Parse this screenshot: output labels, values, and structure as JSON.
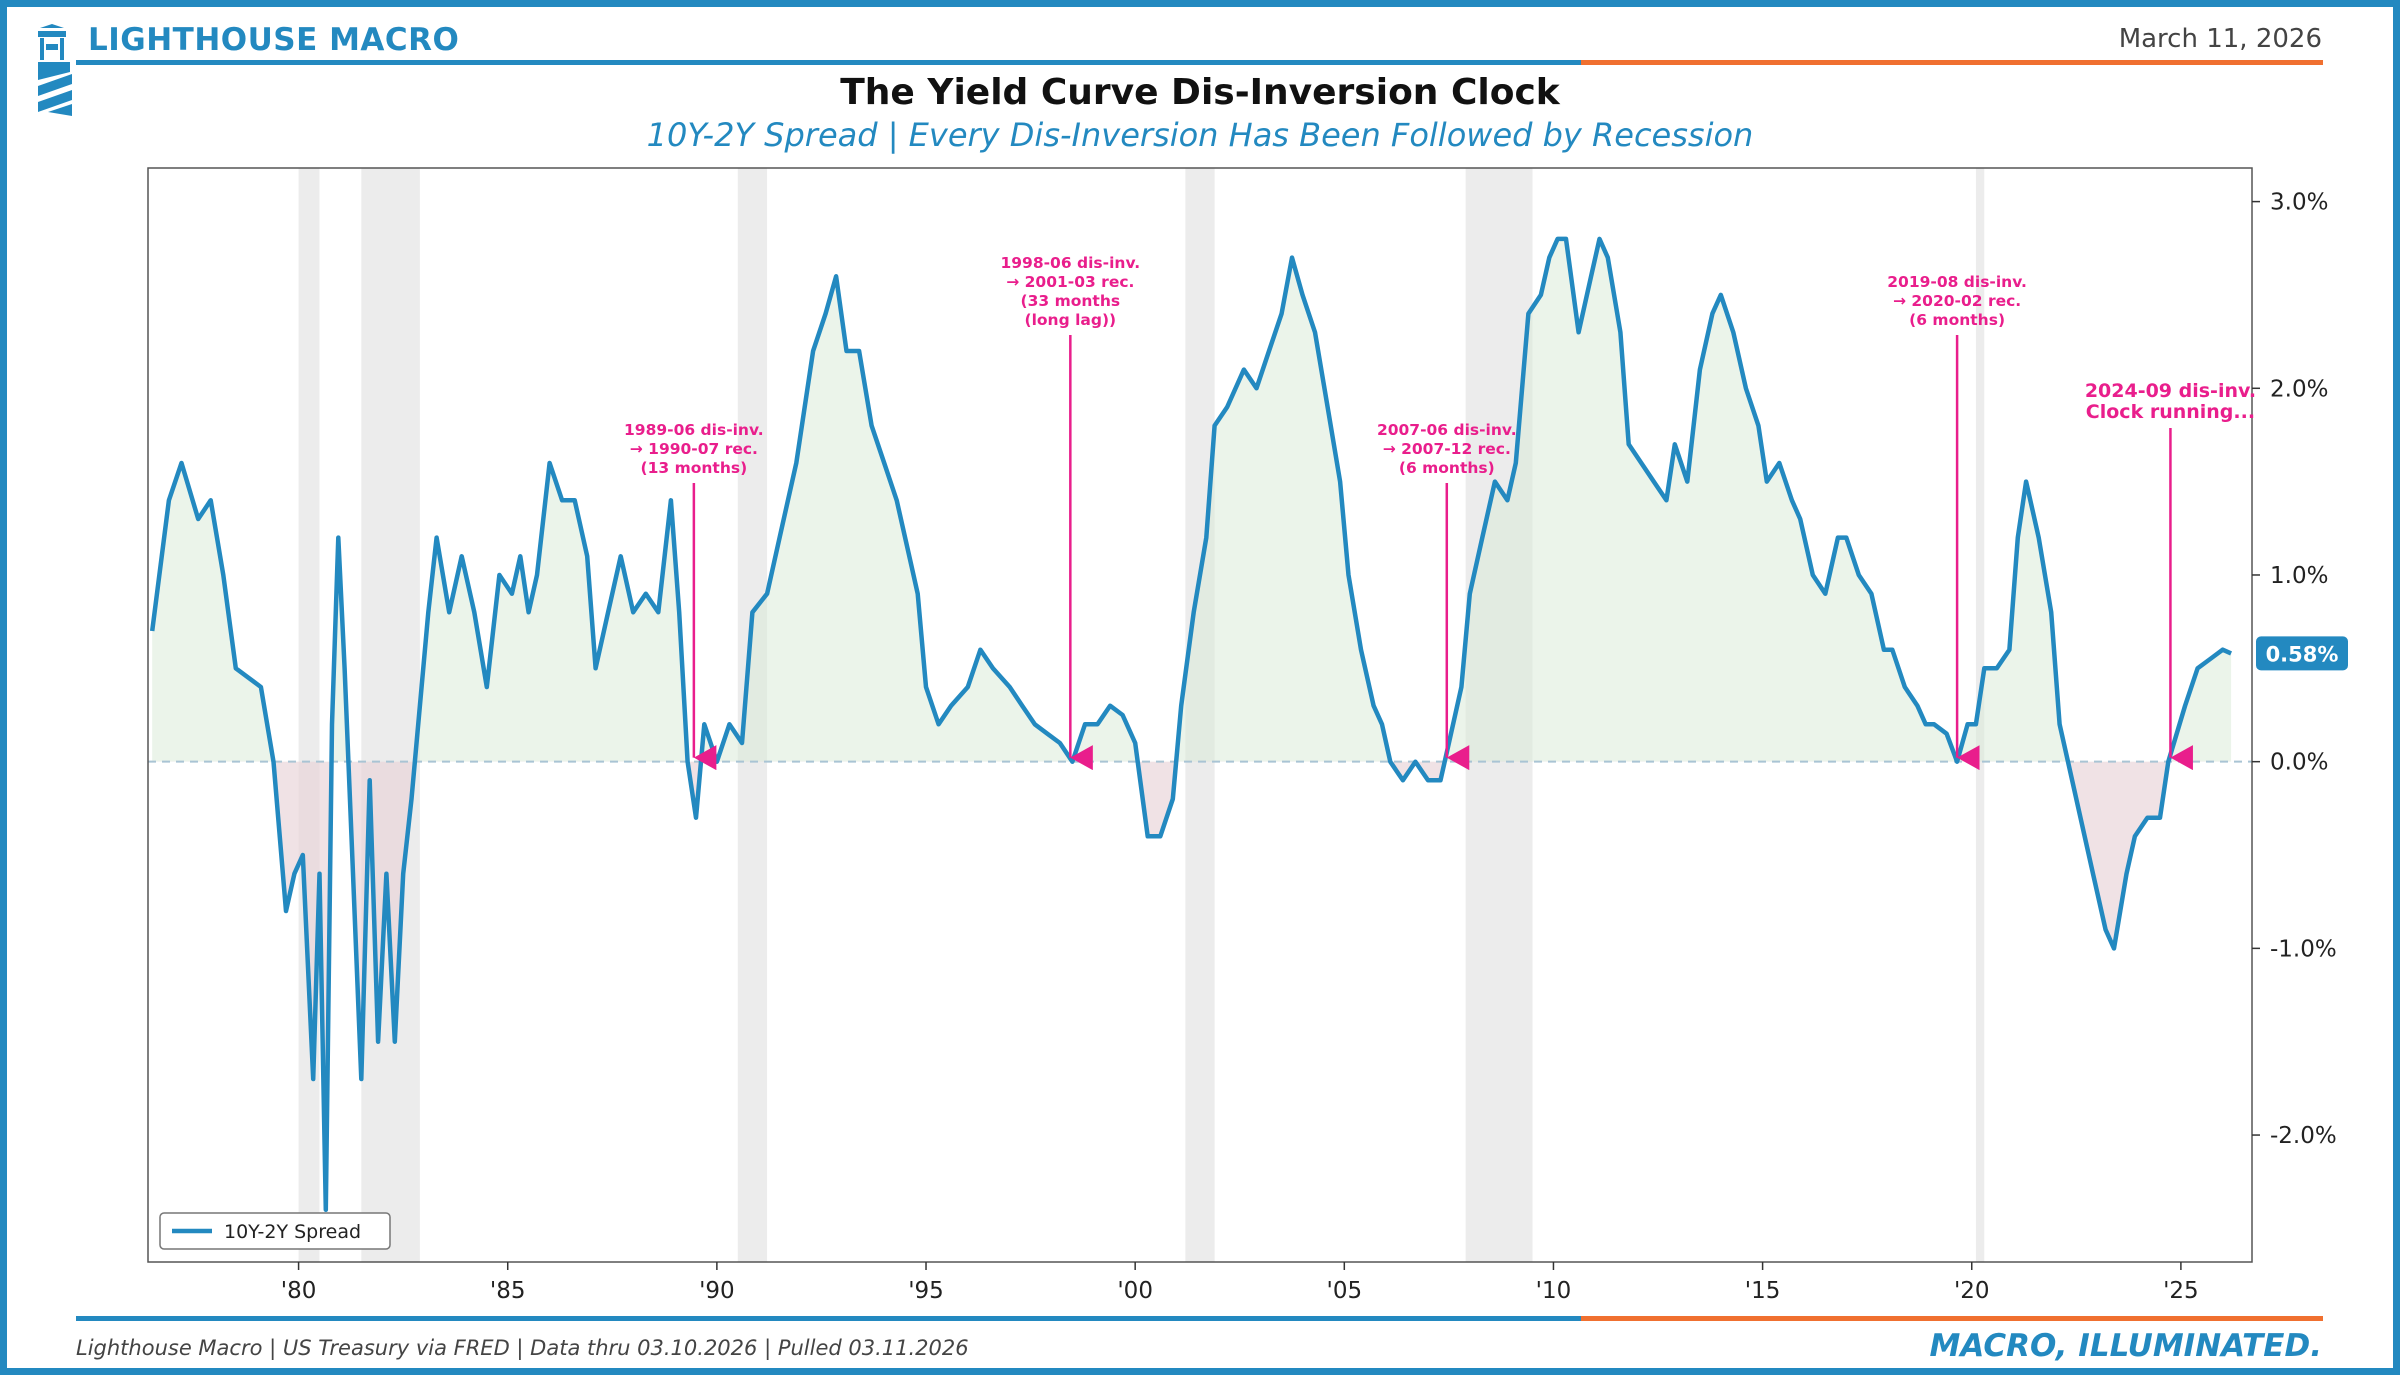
{
  "header": {
    "brand": "LIGHTHOUSE MACRO",
    "date": "March 11, 2026",
    "accent_blue": "#2389c0",
    "accent_orange": "#f07030"
  },
  "footer": {
    "source": "Lighthouse Macro | US Treasury via FRED | Data thru 03.10.2026 | Pulled 03.11.2026",
    "tagline": "MACRO, ILLUMINATED."
  },
  "chart_data": {
    "type": "line",
    "title": "The Yield Curve Dis-Inversion Clock",
    "subtitle": "10Y-2Y Spread | Every Dis-Inversion Has Been Followed by Recession",
    "series": [
      {
        "name": "10Y-2Y Spread",
        "color": "#2389c0",
        "points": [
          [
            1976.5,
            0.7
          ],
          [
            1976.9,
            1.4
          ],
          [
            1977.2,
            1.6
          ],
          [
            1977.6,
            1.3
          ],
          [
            1977.9,
            1.4
          ],
          [
            1978.2,
            1.0
          ],
          [
            1978.5,
            0.5
          ],
          [
            1978.8,
            0.45
          ],
          [
            1979.1,
            0.4
          ],
          [
            1979.4,
            0.0
          ],
          [
            1979.7,
            -0.8
          ],
          [
            1979.9,
            -0.6
          ],
          [
            1980.1,
            -0.5
          ],
          [
            1980.35,
            -1.7
          ],
          [
            1980.5,
            -0.6
          ],
          [
            1980.65,
            -2.4
          ],
          [
            1980.8,
            0.2
          ],
          [
            1980.95,
            1.2
          ],
          [
            1981.1,
            0.5
          ],
          [
            1981.3,
            -0.6
          ],
          [
            1981.5,
            -1.7
          ],
          [
            1981.7,
            -0.1
          ],
          [
            1981.9,
            -1.5
          ],
          [
            1982.1,
            -0.6
          ],
          [
            1982.3,
            -1.5
          ],
          [
            1982.5,
            -0.6
          ],
          [
            1982.7,
            -0.2
          ],
          [
            1982.9,
            0.3
          ],
          [
            1983.1,
            0.8
          ],
          [
            1983.3,
            1.2
          ],
          [
            1983.6,
            0.8
          ],
          [
            1983.9,
            1.1
          ],
          [
            1984.2,
            0.8
          ],
          [
            1984.5,
            0.4
          ],
          [
            1984.8,
            1.0
          ],
          [
            1985.1,
            0.9
          ],
          [
            1985.3,
            1.1
          ],
          [
            1985.5,
            0.8
          ],
          [
            1985.7,
            1.0
          ],
          [
            1986.0,
            1.6
          ],
          [
            1986.3,
            1.4
          ],
          [
            1986.6,
            1.4
          ],
          [
            1986.9,
            1.1
          ],
          [
            1987.1,
            0.5
          ],
          [
            1987.4,
            0.8
          ],
          [
            1987.7,
            1.1
          ],
          [
            1988.0,
            0.8
          ],
          [
            1988.3,
            0.9
          ],
          [
            1988.6,
            0.8
          ],
          [
            1988.9,
            1.4
          ],
          [
            1989.1,
            0.8
          ],
          [
            1989.3,
            0.0
          ],
          [
            1989.5,
            -0.3
          ],
          [
            1989.7,
            0.2
          ],
          [
            1990.0,
            0.0
          ],
          [
            1990.3,
            0.2
          ],
          [
            1990.6,
            0.1
          ],
          [
            1990.85,
            0.8
          ],
          [
            1991.2,
            0.9
          ],
          [
            1991.5,
            1.2
          ],
          [
            1991.9,
            1.6
          ],
          [
            1992.3,
            2.2
          ],
          [
            1992.6,
            2.4
          ],
          [
            1992.85,
            2.6
          ],
          [
            1993.1,
            2.2
          ],
          [
            1993.4,
            2.2
          ],
          [
            1993.7,
            1.8
          ],
          [
            1994.0,
            1.6
          ],
          [
            1994.3,
            1.4
          ],
          [
            1994.6,
            1.1
          ],
          [
            1994.8,
            0.9
          ],
          [
            1995.0,
            0.4
          ],
          [
            1995.3,
            0.2
          ],
          [
            1995.6,
            0.3
          ],
          [
            1996.0,
            0.4
          ],
          [
            1996.3,
            0.6
          ],
          [
            1996.6,
            0.5
          ],
          [
            1997.0,
            0.4
          ],
          [
            1997.3,
            0.3
          ],
          [
            1997.6,
            0.2
          ],
          [
            1997.9,
            0.15
          ],
          [
            1998.2,
            0.1
          ],
          [
            1998.5,
            0.0
          ],
          [
            1998.8,
            0.2
          ],
          [
            1999.1,
            0.2
          ],
          [
            1999.4,
            0.3
          ],
          [
            1999.7,
            0.25
          ],
          [
            2000.0,
            0.1
          ],
          [
            2000.3,
            -0.4
          ],
          [
            2000.6,
            -0.4
          ],
          [
            2000.9,
            -0.2
          ],
          [
            2001.1,
            0.3
          ],
          [
            2001.4,
            0.8
          ],
          [
            2001.7,
            1.2
          ],
          [
            2001.9,
            1.8
          ],
          [
            2002.2,
            1.9
          ],
          [
            2002.6,
            2.1
          ],
          [
            2002.9,
            2.0
          ],
          [
            2003.2,
            2.2
          ],
          [
            2003.5,
            2.4
          ],
          [
            2003.75,
            2.7
          ],
          [
            2004.0,
            2.5
          ],
          [
            2004.3,
            2.3
          ],
          [
            2004.6,
            1.9
          ],
          [
            2004.9,
            1.5
          ],
          [
            2005.1,
            1.0
          ],
          [
            2005.4,
            0.6
          ],
          [
            2005.7,
            0.3
          ],
          [
            2005.9,
            0.2
          ],
          [
            2006.1,
            0.0
          ],
          [
            2006.4,
            -0.1
          ],
          [
            2006.7,
            0.0
          ],
          [
            2007.0,
            -0.1
          ],
          [
            2007.3,
            -0.1
          ],
          [
            2007.5,
            0.1
          ],
          [
            2007.8,
            0.4
          ],
          [
            2008.0,
            0.9
          ],
          [
            2008.3,
            1.2
          ],
          [
            2008.6,
            1.5
          ],
          [
            2008.9,
            1.4
          ],
          [
            2009.1,
            1.6
          ],
          [
            2009.4,
            2.4
          ],
          [
            2009.7,
            2.5
          ],
          [
            2009.9,
            2.7
          ],
          [
            2010.1,
            2.8
          ],
          [
            2010.3,
            2.8
          ],
          [
            2010.6,
            2.3
          ],
          [
            2010.9,
            2.6
          ],
          [
            2011.1,
            2.8
          ],
          [
            2011.3,
            2.7
          ],
          [
            2011.6,
            2.3
          ],
          [
            2011.8,
            1.7
          ],
          [
            2012.1,
            1.6
          ],
          [
            2012.4,
            1.5
          ],
          [
            2012.7,
            1.4
          ],
          [
            2012.9,
            1.7
          ],
          [
            2013.2,
            1.5
          ],
          [
            2013.5,
            2.1
          ],
          [
            2013.8,
            2.4
          ],
          [
            2014.0,
            2.5
          ],
          [
            2014.3,
            2.3
          ],
          [
            2014.6,
            2.0
          ],
          [
            2014.9,
            1.8
          ],
          [
            2015.1,
            1.5
          ],
          [
            2015.4,
            1.6
          ],
          [
            2015.7,
            1.4
          ],
          [
            2015.9,
            1.3
          ],
          [
            2016.2,
            1.0
          ],
          [
            2016.5,
            0.9
          ],
          [
            2016.8,
            1.2
          ],
          [
            2017.0,
            1.2
          ],
          [
            2017.3,
            1.0
          ],
          [
            2017.6,
            0.9
          ],
          [
            2017.9,
            0.6
          ],
          [
            2018.1,
            0.6
          ],
          [
            2018.4,
            0.4
          ],
          [
            2018.7,
            0.3
          ],
          [
            2018.9,
            0.2
          ],
          [
            2019.1,
            0.2
          ],
          [
            2019.4,
            0.15
          ],
          [
            2019.65,
            0.0
          ],
          [
            2019.9,
            0.2
          ],
          [
            2020.1,
            0.2
          ],
          [
            2020.3,
            0.5
          ],
          [
            2020.6,
            0.5
          ],
          [
            2020.9,
            0.6
          ],
          [
            2021.1,
            1.2
          ],
          [
            2021.3,
            1.5
          ],
          [
            2021.6,
            1.2
          ],
          [
            2021.9,
            0.8
          ],
          [
            2022.1,
            0.2
          ],
          [
            2022.3,
            0.0
          ],
          [
            2022.6,
            -0.3
          ],
          [
            2022.9,
            -0.6
          ],
          [
            2023.2,
            -0.9
          ],
          [
            2023.4,
            -1.0
          ],
          [
            2023.7,
            -0.6
          ],
          [
            2023.9,
            -0.4
          ],
          [
            2024.2,
            -0.3
          ],
          [
            2024.5,
            -0.3
          ],
          [
            2024.7,
            0.0
          ],
          [
            2024.9,
            0.15
          ],
          [
            2025.1,
            0.3
          ],
          [
            2025.4,
            0.5
          ],
          [
            2025.7,
            0.55
          ],
          [
            2026.0,
            0.6
          ],
          [
            2026.2,
            0.58
          ]
        ]
      }
    ],
    "recessions": [
      [
        1980.0,
        1980.5
      ],
      [
        1981.5,
        1982.9
      ],
      [
        1990.5,
        1991.2
      ],
      [
        2001.2,
        2001.9
      ],
      [
        2007.9,
        2009.5
      ],
      [
        2020.1,
        2020.3
      ]
    ],
    "x_ticks": [
      {
        "value": 1980,
        "label": "'80"
      },
      {
        "value": 1985,
        "label": "'85"
      },
      {
        "value": 1990,
        "label": "'90"
      },
      {
        "value": 1995,
        "label": "'95"
      },
      {
        "value": 2000,
        "label": "'00"
      },
      {
        "value": 2005,
        "label": "'05"
      },
      {
        "value": 2010,
        "label": "'10"
      },
      {
        "value": 2015,
        "label": "'15"
      },
      {
        "value": 2020,
        "label": "'20"
      },
      {
        "value": 2025,
        "label": "'25"
      }
    ],
    "y_ticks": [
      {
        "value": 3.0,
        "label": "3.0%"
      },
      {
        "value": 2.0,
        "label": "2.0%"
      },
      {
        "value": 1.0,
        "label": "1.0%"
      },
      {
        "value": 0.0,
        "label": "0.0%"
      },
      {
        "value": -1.0,
        "label": "-1.0%"
      },
      {
        "value": -2.0,
        "label": "-2.0%"
      }
    ],
    "xlim": [
      1976.4,
      2026.7
    ],
    "ylim": [
      -2.68,
      3.18
    ],
    "y_axis_side": "right",
    "legend": {
      "position": "bottom-left",
      "label": "10Y-2Y Spread"
    },
    "last_value_label": "0.58%",
    "annotations": [
      {
        "x": 1989.45,
        "y": 0.0,
        "lines": [
          "1989-06 dis-inv.",
          "→ 1990-07 rec.",
          "(13 months)"
        ],
        "style": "small"
      },
      {
        "x": 1998.45,
        "y": 0.0,
        "lines": [
          "1998-06 dis-inv.",
          "→ 2001-03 rec.",
          "(33 months",
          "(long lag))"
        ],
        "style": "small"
      },
      {
        "x": 2007.45,
        "y": 0.0,
        "lines": [
          "2007-06 dis-inv.",
          "→ 2007-12 rec.",
          "(6 months)"
        ],
        "style": "small"
      },
      {
        "x": 2019.65,
        "y": 0.0,
        "lines": [
          "2019-08 dis-inv.",
          "→ 2020-02 rec.",
          "(6 months)"
        ],
        "style": "small"
      },
      {
        "x": 2024.75,
        "y": 0.0,
        "lines": [
          "2024-09 dis-inv.",
          "Clock running..."
        ],
        "style": "big"
      }
    ]
  }
}
